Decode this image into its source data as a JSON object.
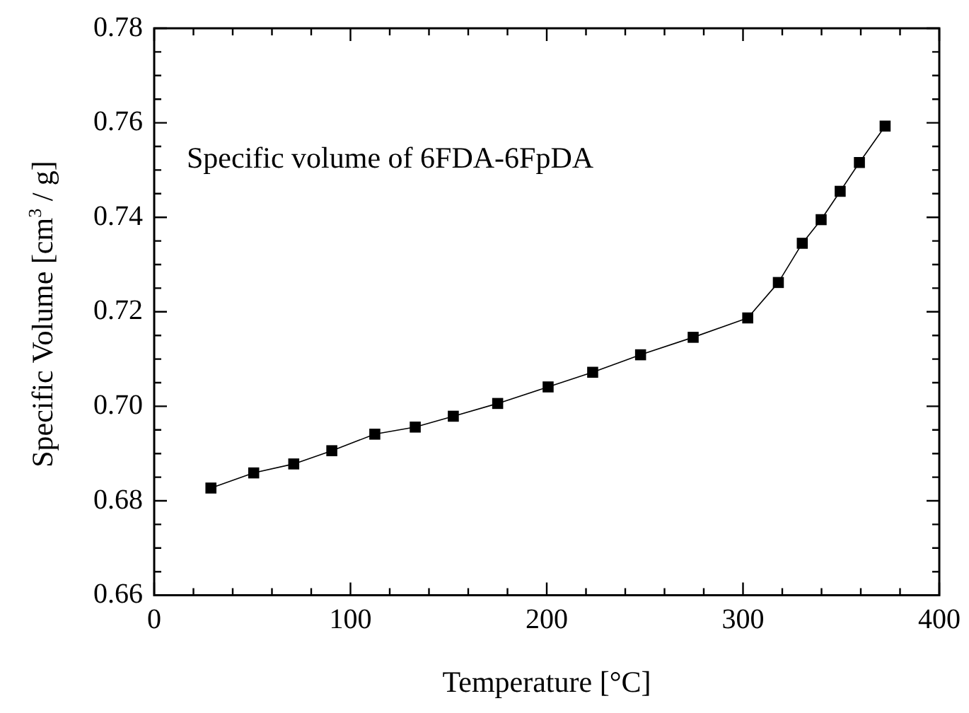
{
  "chart_data": {
    "type": "line",
    "xlabel": "Temperature [°C]",
    "ylabel": "Specific Volume [cm$^{3}$ / g]",
    "annotations": [
      "Specific volume of 6FDA-6FpDA"
    ],
    "series": [
      {
        "color": "#000000",
        "x": [
          28.9,
          50.7,
          71.1,
          90.5,
          112.4,
          133,
          152.4,
          175,
          200.7,
          223.4,
          247.8,
          274.6,
          302.4,
          318,
          330.2,
          339.8,
          349.5,
          359.3,
          372.4
        ],
        "values": [
          0.6827,
          0.6859,
          0.6878,
          0.6906,
          0.6941,
          0.6956,
          0.6979,
          0.7006,
          0.7041,
          0.7072,
          0.7109,
          0.7146,
          0.7187,
          0.7262,
          0.7345,
          0.7395,
          0.7455,
          0.7516,
          0.7593
        ]
      }
    ],
    "xlim": [
      0,
      400
    ],
    "xticks": [
      0,
      {
        "value": 20,
        "label": null
      },
      {
        "value": 40,
        "label": null
      },
      {
        "value": 60,
        "label": null
      },
      {
        "value": 80,
        "label": null
      },
      100,
      {
        "value": 120,
        "label": null
      },
      {
        "value": 140,
        "label": null
      },
      {
        "value": 160,
        "label": null
      },
      {
        "value": 180,
        "label": null
      },
      200,
      {
        "value": 220,
        "label": null
      },
      {
        "value": 240,
        "label": null
      },
      {
        "value": 260,
        "label": null
      },
      {
        "value": 280,
        "label": null
      },
      300,
      {
        "value": 320,
        "label": null
      },
      {
        "value": 340,
        "label": null
      },
      {
        "value": 360,
        "label": null
      },
      {
        "value": 380,
        "label": null
      },
      400
    ],
    "ylim": [
      0.66,
      0.78
    ],
    "yticks": [
      {
        "value": 0.66,
        "label": "0.66"
      },
      {
        "value": 0.665,
        "label": null
      },
      {
        "value": 0.67,
        "label": null
      },
      {
        "value": 0.675,
        "label": null
      },
      {
        "value": 0.68,
        "label": "0.68"
      },
      {
        "value": 0.685,
        "label": null
      },
      {
        "value": 0.69,
        "label": null
      },
      {
        "value": 0.695,
        "label": null
      },
      {
        "value": 0.7,
        "label": "0.70"
      },
      {
        "value": 0.705,
        "label": null
      },
      {
        "value": 0.71,
        "label": null
      },
      {
        "value": 0.715,
        "label": null
      },
      {
        "value": 0.72,
        "label": "0.72"
      },
      {
        "value": 0.725,
        "label": null
      },
      {
        "value": 0.73,
        "label": null
      },
      {
        "value": 0.735,
        "label": null
      },
      {
        "value": 0.74,
        "label": "0.74"
      },
      {
        "value": 0.745,
        "label": null
      },
      {
        "value": 0.75,
        "label": null
      },
      {
        "value": 0.755,
        "label": null
      },
      {
        "value": 0.76,
        "label": "0.76"
      },
      {
        "value": 0.765,
        "label": null
      },
      {
        "value": 0.77,
        "label": null
      },
      {
        "value": 0.775,
        "label": null
      },
      {
        "value": 0.78,
        "label": "0.78"
      }
    ],
    "grid": false,
    "legend": false,
    "marker": "square",
    "line_style": "solid"
  }
}
